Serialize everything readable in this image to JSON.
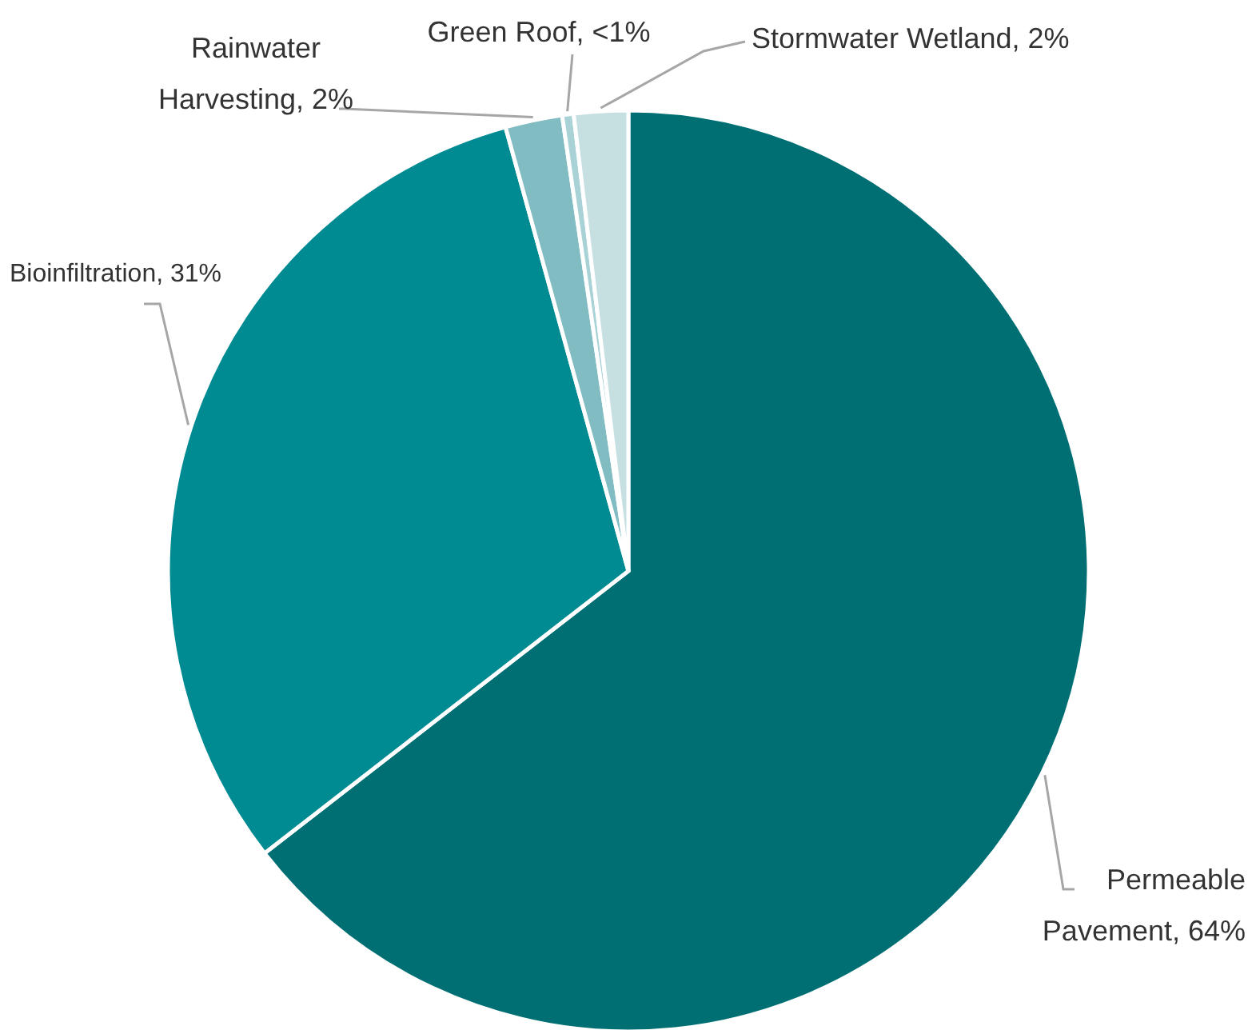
{
  "chart_data": {
    "type": "pie",
    "categories": [
      "Permeable Pavement",
      "Bioinfiltration",
      "Rainwater Harvesting",
      "Green Roof",
      "Stormwater Wetland"
    ],
    "values": [
      64.5,
      31.2,
      2.0,
      0.4,
      1.9
    ],
    "value_labels": [
      "64%",
      "31%",
      "2%",
      "<1%",
      "2%"
    ],
    "colors": [
      "#006f73",
      "#008b93",
      "#80bcc2",
      "#a9d2d6",
      "#c6e0e2"
    ],
    "legend": false
  }
}
